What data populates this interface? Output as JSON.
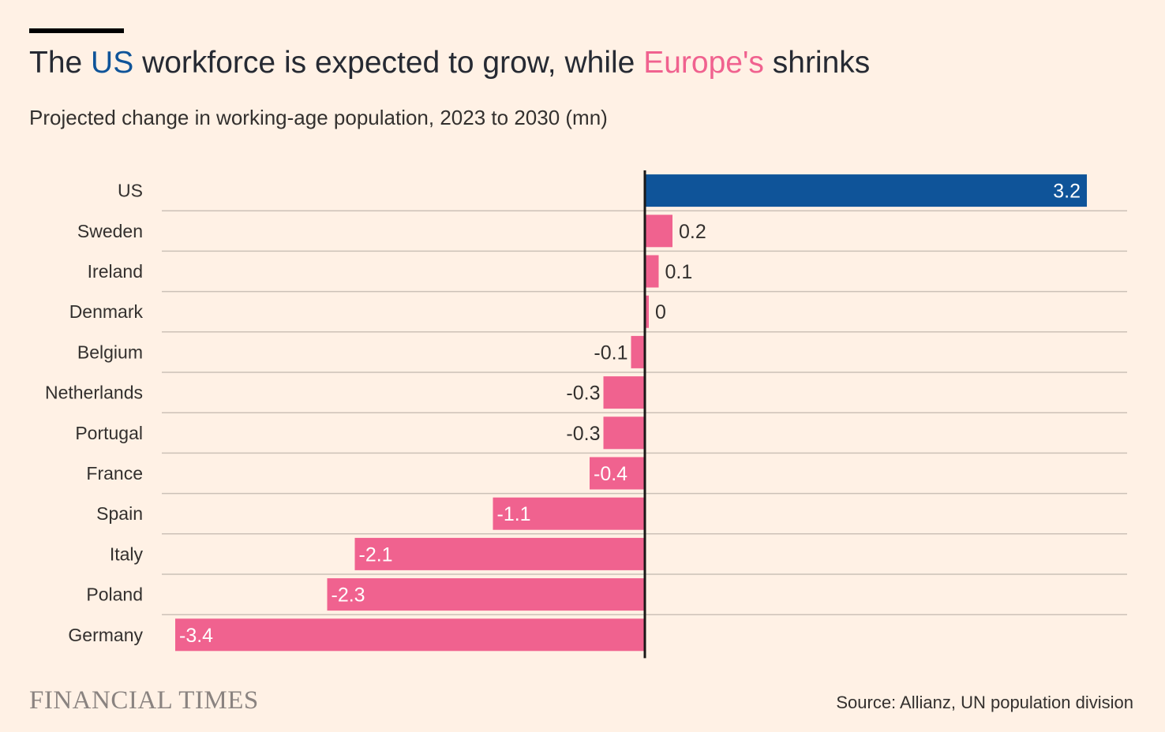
{
  "title": {
    "part1": "The ",
    "hl1": "US",
    "part2": " workforce is expected to grow, while ",
    "hl2": "Europe's",
    "part3": " shrinks"
  },
  "subtitle": "Projected change in working-age population, 2023 to 2030 (mn)",
  "brand": "FINANCIAL TIMES",
  "source": "Source: Allianz, UN population division",
  "colors": {
    "us": "#0f5499",
    "europe": "#f0628f",
    "background": "#fff1e5",
    "gridline": "#ccc1b7",
    "axis": "#1a1817"
  },
  "chart_data": {
    "type": "bar",
    "orientation": "horizontal",
    "categories": [
      "US",
      "Sweden",
      "Ireland",
      "Denmark",
      "Belgium",
      "Netherlands",
      "Portugal",
      "France",
      "Spain",
      "Italy",
      "Poland",
      "Germany"
    ],
    "values": [
      3.2,
      0.2,
      0.1,
      0,
      -0.1,
      -0.3,
      -0.3,
      -0.4,
      -1.1,
      -2.1,
      -2.3,
      -3.4
    ],
    "value_labels": [
      "3.2",
      "0.2",
      "0.1",
      "0",
      "-0.1",
      "-0.3",
      "-0.3",
      "-0.4",
      "-1.1",
      "-2.1",
      "-2.3",
      "-3.4"
    ],
    "xlim": [
      -3.4,
      3.2
    ],
    "grid": true,
    "highlight": {
      "US": "us"
    }
  }
}
